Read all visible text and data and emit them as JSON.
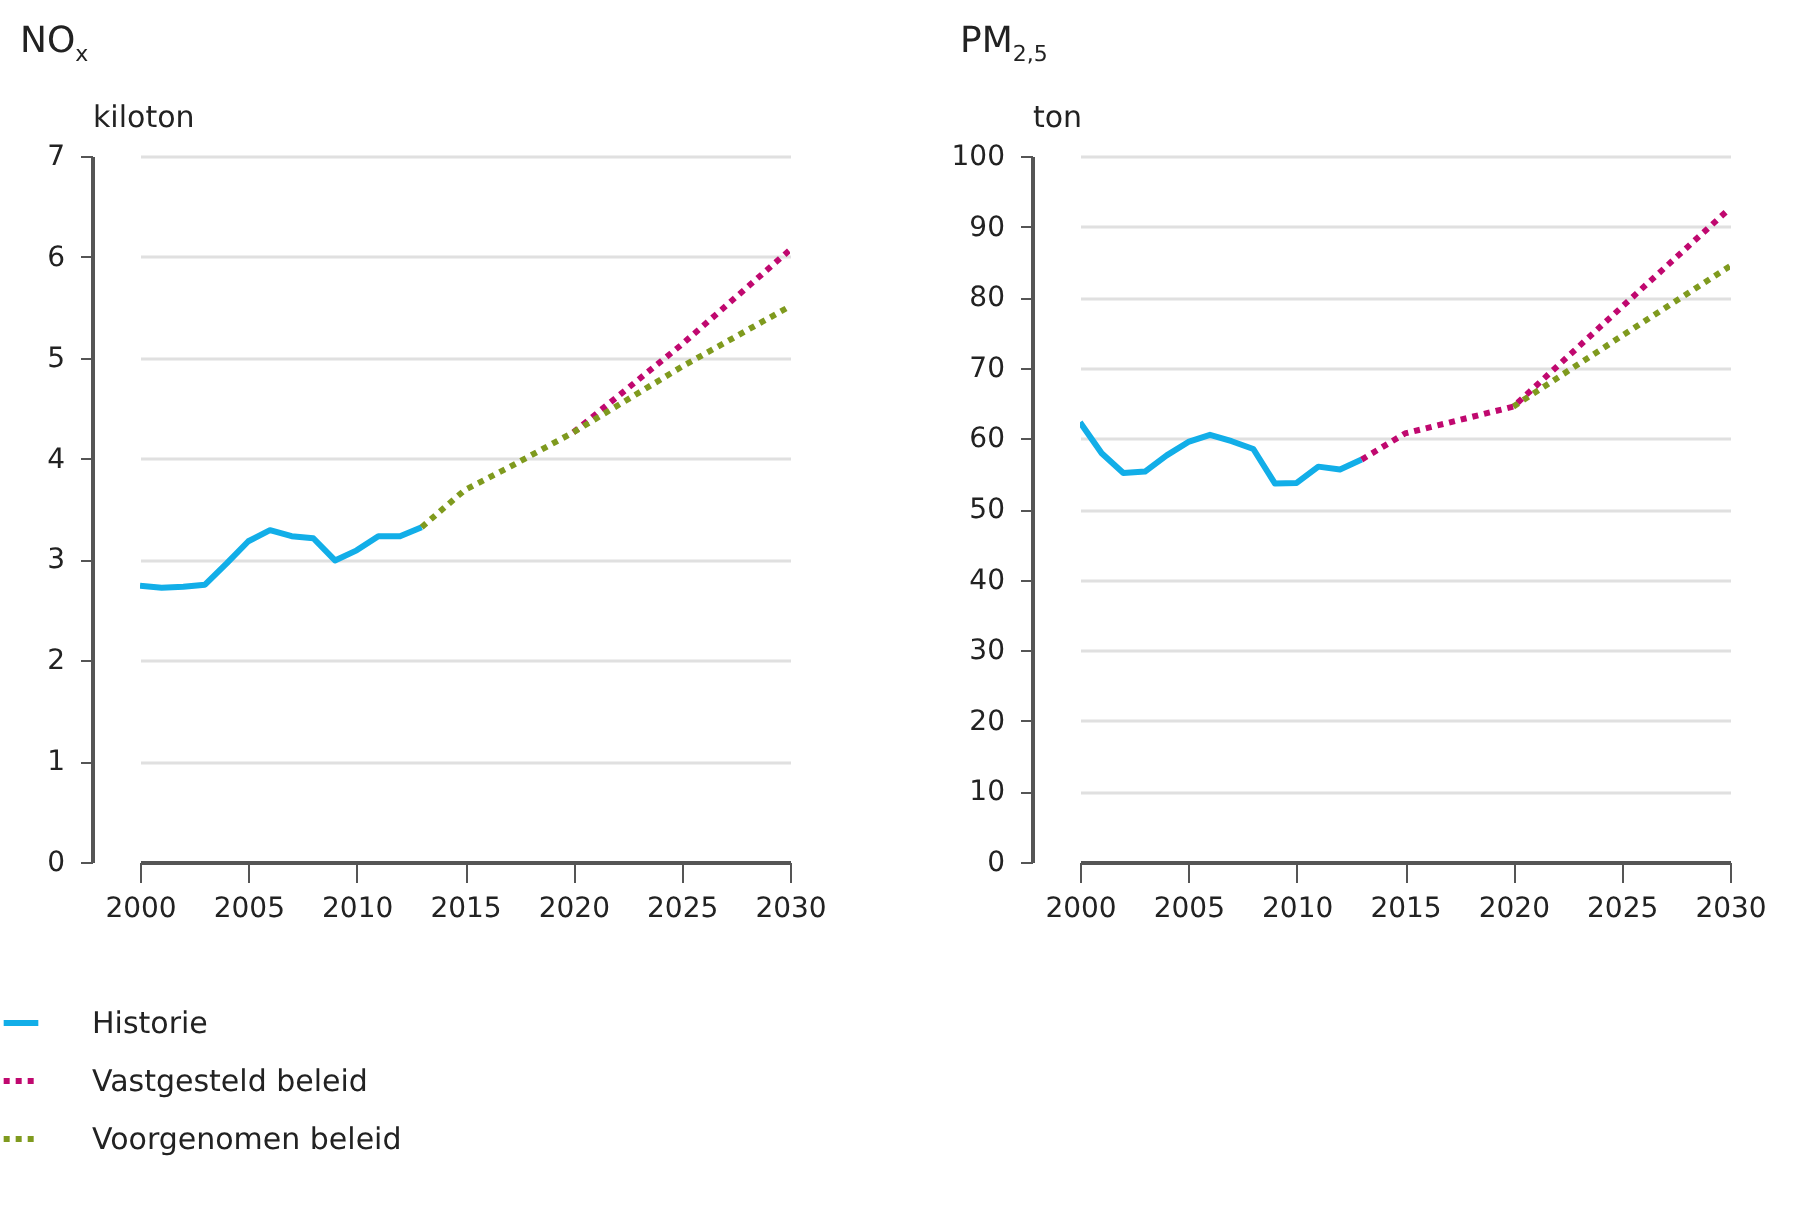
{
  "chart_data": [
    {
      "type": "line",
      "title": "NO$_{x}$",
      "ylabel": "kiloton",
      "xlim": [
        2000,
        2030
      ],
      "xticks": [
        2000,
        2005,
        2010,
        2015,
        2020,
        2025,
        2030
      ],
      "ylim": [
        0,
        7
      ],
      "yticks": [
        0,
        1,
        2,
        3,
        4,
        5,
        6,
        7
      ],
      "grid": "y",
      "legend": "bottom left",
      "series": [
        {
          "name": "Historie",
          "color": "#12aee8",
          "line_style": "solid",
          "x": [
            2000,
            2001,
            2002,
            2003,
            2004,
            2005,
            2006,
            2007,
            2008,
            2009,
            2010,
            2011,
            2012,
            2013
          ],
          "values": [
            2.74,
            2.72,
            2.73,
            2.75,
            2.96,
            3.18,
            3.29,
            3.23,
            3.21,
            2.99,
            3.09,
            3.23,
            3.23,
            3.32
          ]
        },
        {
          "name": "Vastgesteld beleid",
          "color": "#c0086f",
          "line_style": "dotted",
          "x": [
            2020,
            2025,
            2030
          ],
          "values": [
            4.26,
            5.13,
            6.07
          ]
        },
        {
          "name": "Voorgenomen beleid",
          "color": "#7f9a1e",
          "line_style": "dotted",
          "x": [
            2013,
            2015,
            2017,
            2020,
            2025,
            2030
          ],
          "values": [
            3.32,
            3.69,
            3.91,
            4.26,
            4.91,
            5.51
          ]
        }
      ]
    },
    {
      "type": "line",
      "title": "PM$_{2,5}$",
      "ylabel": "ton",
      "xlim": [
        2000,
        2030
      ],
      "xticks": [
        2000,
        2005,
        2010,
        2015,
        2020,
        2025,
        2030
      ],
      "ylim": [
        0,
        100
      ],
      "yticks": [
        0,
        10,
        20,
        30,
        40,
        50,
        60,
        70,
        80,
        90,
        100
      ],
      "grid": "y",
      "series": [
        {
          "color": "#12aee8",
          "line_style": "solid",
          "x": [
            2000,
            2001,
            2002,
            2003,
            2004,
            2005,
            2006,
            2007,
            2008,
            2009,
            2010,
            2011,
            2012,
            2013
          ],
          "values": [
            62.3,
            57.9,
            55.1,
            55.3,
            57.6,
            59.5,
            60.5,
            59.6,
            58.5,
            53.6,
            53.7,
            56.0,
            55.6,
            57.0
          ]
        },
        {
          "color": "#7f9a1e",
          "line_style": "dotted",
          "x": [
            2020,
            2025,
            2030
          ],
          "values": [
            64.5,
            74.5,
            84.4
          ]
        },
        {
          "color": "#c0086f",
          "line_style": "dotted",
          "x": [
            2013,
            2015,
            2020,
            2025,
            2030
          ],
          "values": [
            57.0,
            60.7,
            64.5,
            78.6,
            92.6
          ]
        }
      ]
    }
  ]
}
